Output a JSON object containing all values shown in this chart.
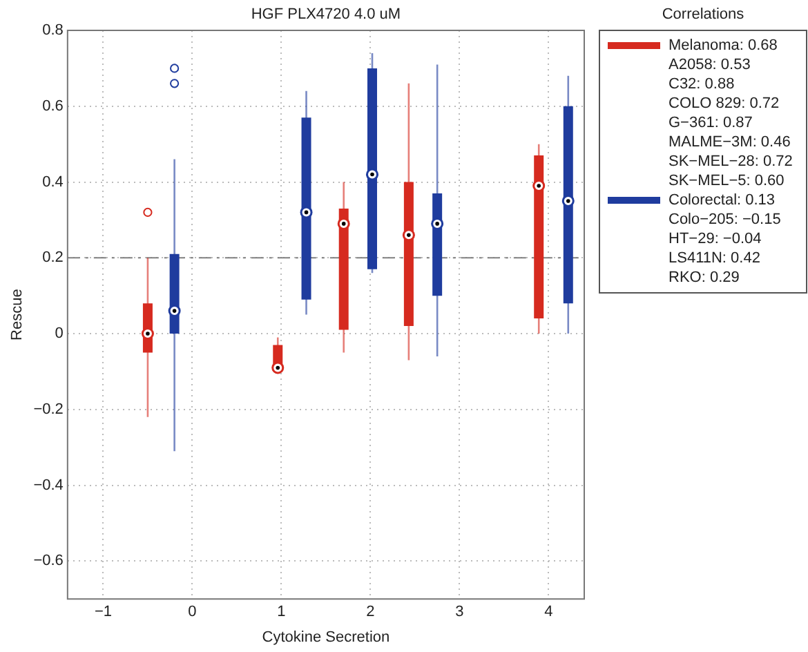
{
  "chart_data": {
    "type": "box",
    "title": "HGF PLX4720 4.0 uM",
    "xlabel": "Cytokine Secretion",
    "ylabel": "Rescue",
    "legend_title": "Correlations",
    "legend": "right",
    "grid": true,
    "marker": "circle",
    "xlim": [
      -1.4,
      4.4
    ],
    "xticks": [
      {
        "value": -1,
        "label": "−1"
      },
      0,
      1,
      2,
      3,
      4
    ],
    "ylim": [
      -0.7,
      0.8
    ],
    "yticks": [
      {
        "value": -0.6,
        "label": "−0.6"
      },
      {
        "value": -0.4,
        "label": "−0.4"
      },
      {
        "value": -0.2,
        "label": "−0.2"
      },
      0,
      0.2,
      0.4,
      0.6,
      0.8
    ],
    "ref_lines": [
      {
        "axis": "y",
        "value": 0.2,
        "color": "#808080",
        "line_style": "dashed"
      }
    ],
    "series": [
      {
        "name": "Melanoma: 0.68\nA2058: 0.53\nC32: 0.88\nCOLO 829: 0.72\nG−361: 0.87\nMALME−3M: 0.46\nSK−MEL−28: 0.72\nSK−MEL−5: 0.60",
        "color": "#d62a1f",
        "x": [
          -0.5,
          0.96,
          1.7,
          2.43,
          3.89
        ],
        "boxes": [
          {
            "low": -0.22,
            "q1": -0.05,
            "median": 0,
            "q3": 0.08,
            "high": 0.2,
            "outliers": [
              0.32
            ]
          },
          {
            "low": -0.1,
            "q1": -0.08,
            "median": -0.09,
            "q3": -0.03,
            "high": -0.01
          },
          {
            "low": -0.05,
            "q1": 0.01,
            "median": 0.29,
            "q3": 0.33,
            "high": 0.4
          },
          {
            "low": -0.07,
            "q1": 0.02,
            "median": 0.26,
            "q3": 0.4,
            "high": 0.66
          },
          {
            "low": 0,
            "q1": 0.04,
            "median": 0.39,
            "q3": 0.47,
            "high": 0.5
          }
        ]
      },
      {
        "name": "Colorectal: 0.13\nColo−205: −0.15\nHT−29: −0.04\nLS411N: 0.42\nRKO: 0.29",
        "color": "#1f3c9e",
        "x": [
          -0.2,
          1.28,
          2.02,
          2.75,
          4.22
        ],
        "boxes": [
          {
            "low": -0.31,
            "q1": 0,
            "median": 0.06,
            "q3": 0.21,
            "high": 0.46,
            "outliers": [
              0.66,
              0.7
            ]
          },
          {
            "low": 0.05,
            "q1": 0.09,
            "median": 0.32,
            "q3": 0.57,
            "high": 0.64
          },
          {
            "low": 0.16,
            "q1": 0.17,
            "median": 0.42,
            "q3": 0.7,
            "high": 0.74
          },
          {
            "low": -0.06,
            "q1": 0.1,
            "median": 0.29,
            "q3": 0.37,
            "high": 0.71
          },
          {
            "low": 0,
            "q1": 0.08,
            "median": 0.35,
            "q3": 0.6,
            "high": 0.68
          }
        ]
      }
    ]
  }
}
